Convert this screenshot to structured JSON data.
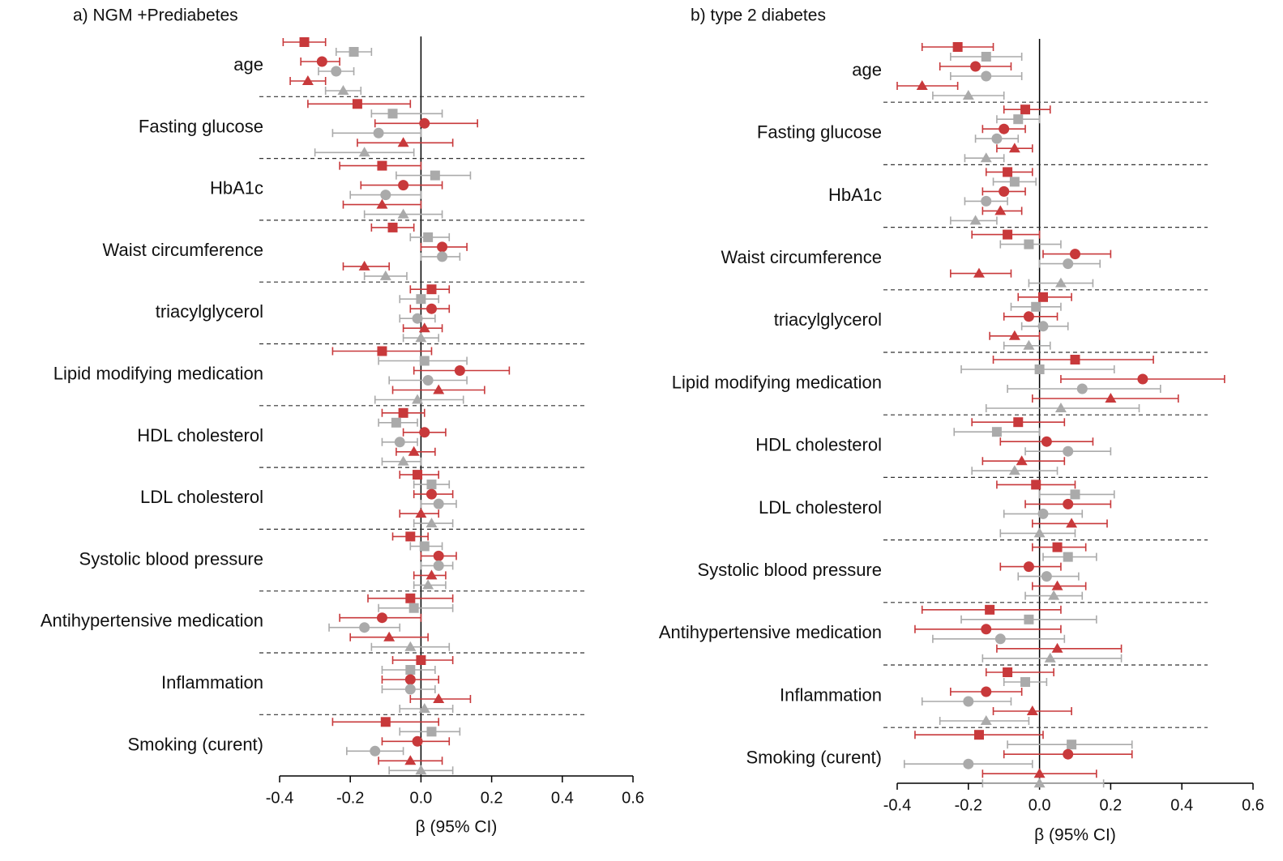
{
  "chart_data": [
    {
      "type": "forest",
      "title": "a) NGM +Prediabetes",
      "xlabel": "β (95% CI)",
      "xlim": [
        -0.4,
        0.6
      ],
      "xticks": [
        -0.4,
        -0.2,
        {
          "value": 0,
          "label": "0.0"
        },
        0.2,
        0.4,
        0.6
      ],
      "categories": [
        "age",
        "Fasting glucose",
        "HbA1c",
        "Waist circumference",
        "triacylglycerol",
        "Lipid modifying medication",
        "HDL cholesterol",
        "LDL cholesterol",
        "Systolic blood pressure",
        "Antihypertensive medication",
        "Inflammation",
        "Smoking (curent)"
      ],
      "series": [
        {
          "color": "#c8393b",
          "marker": "square",
          "values": [
            -0.33,
            -0.18,
            -0.11,
            -0.08,
            0.03,
            -0.11,
            -0.05,
            -0.01,
            -0.03,
            -0.03,
            0.0,
            -0.1
          ],
          "lower": [
            -0.39,
            -0.32,
            -0.23,
            -0.14,
            -0.03,
            -0.25,
            -0.11,
            -0.06,
            -0.08,
            -0.15,
            -0.08,
            -0.25
          ],
          "upper": [
            -0.27,
            -0.03,
            0.0,
            -0.02,
            0.08,
            0.03,
            0.01,
            0.05,
            0.02,
            0.09,
            0.09,
            0.05
          ]
        },
        {
          "color": "#aaaaaa",
          "marker": "square",
          "values": [
            -0.19,
            -0.08,
            0.04,
            0.02,
            0.0,
            0.01,
            -0.07,
            0.03,
            0.01,
            -0.02,
            -0.03,
            0.03
          ],
          "lower": [
            -0.24,
            -0.14,
            -0.07,
            -0.03,
            -0.06,
            -0.12,
            -0.12,
            -0.02,
            -0.03,
            -0.12,
            -0.11,
            -0.06
          ],
          "upper": [
            -0.14,
            0.06,
            0.14,
            0.08,
            0.05,
            0.13,
            -0.01,
            0.08,
            0.06,
            0.09,
            0.04,
            0.11
          ]
        },
        {
          "color": "#c8393b",
          "marker": "circle",
          "values": [
            -0.28,
            0.01,
            -0.05,
            0.06,
            0.03,
            0.11,
            0.01,
            0.03,
            0.05,
            -0.11,
            -0.03,
            -0.01
          ],
          "lower": [
            -0.34,
            -0.13,
            -0.17,
            0.0,
            -0.03,
            -0.02,
            -0.05,
            -0.02,
            0.0,
            -0.23,
            -0.11,
            -0.11
          ],
          "upper": [
            -0.23,
            0.16,
            0.06,
            0.13,
            0.08,
            0.25,
            0.07,
            0.09,
            0.1,
            0.0,
            0.05,
            0.08
          ]
        },
        {
          "color": "#aaaaaa",
          "marker": "circle",
          "values": [
            -0.24,
            -0.12,
            -0.1,
            0.06,
            -0.01,
            0.02,
            -0.06,
            0.05,
            0.05,
            -0.16,
            -0.03,
            -0.13
          ],
          "lower": [
            -0.29,
            -0.25,
            -0.2,
            0.0,
            -0.06,
            -0.09,
            -0.11,
            0.0,
            0.0,
            -0.26,
            -0.11,
            -0.21
          ],
          "upper": [
            -0.19,
            0.0,
            0.0,
            0.11,
            0.04,
            0.13,
            -0.01,
            0.1,
            0.09,
            -0.06,
            0.04,
            -0.05
          ]
        },
        {
          "color": "#c8393b",
          "marker": "triangle",
          "values": [
            -0.32,
            -0.05,
            -0.11,
            -0.16,
            0.01,
            0.05,
            -0.02,
            0.0,
            0.03,
            -0.09,
            0.05,
            -0.03
          ],
          "lower": [
            -0.37,
            -0.18,
            -0.22,
            -0.22,
            -0.05,
            -0.08,
            -0.07,
            -0.06,
            -0.02,
            -0.2,
            -0.03,
            -0.12
          ],
          "upper": [
            -0.27,
            0.09,
            0.0,
            -0.09,
            0.06,
            0.18,
            0.04,
            0.05,
            0.07,
            0.02,
            0.14,
            0.06
          ]
        },
        {
          "color": "#aaaaaa",
          "marker": "triangle",
          "values": [
            -0.22,
            -0.16,
            -0.05,
            -0.1,
            0.0,
            -0.01,
            -0.05,
            0.03,
            0.02,
            -0.03,
            0.01,
            0.0
          ],
          "lower": [
            -0.27,
            -0.3,
            -0.16,
            -0.16,
            -0.05,
            -0.13,
            -0.11,
            -0.02,
            -0.02,
            -0.14,
            -0.06,
            -0.09
          ],
          "upper": [
            -0.17,
            -0.02,
            0.06,
            -0.04,
            0.05,
            0.12,
            0.0,
            0.09,
            0.07,
            0.08,
            0.09,
            0.09
          ]
        }
      ]
    },
    {
      "type": "forest",
      "title": "b) type 2 diabetes",
      "xlabel": "β (95% CI)",
      "xlim": [
        -0.4,
        0.6
      ],
      "xticks": [
        -0.4,
        -0.2,
        {
          "value": 0,
          "label": "0.0"
        },
        0.2,
        0.4,
        0.6
      ],
      "categories": [
        "age",
        "Fasting glucose",
        "HbA1c",
        "Waist circumference",
        "triacylglycerol",
        "Lipid modifying medication",
        "HDL cholesterol",
        "LDL cholesterol",
        "Systolic blood pressure",
        "Antihypertensive medication",
        "Inflammation",
        "Smoking (curent)"
      ],
      "series": [
        {
          "color": "#c8393b",
          "marker": "square",
          "values": [
            -0.23,
            -0.04,
            -0.09,
            -0.09,
            0.01,
            0.1,
            -0.06,
            -0.01,
            0.05,
            -0.14,
            -0.09,
            -0.17
          ],
          "lower": [
            -0.33,
            -0.1,
            -0.15,
            -0.19,
            -0.06,
            -0.13,
            -0.19,
            -0.12,
            -0.02,
            -0.33,
            -0.15,
            -0.35
          ],
          "upper": [
            -0.13,
            0.03,
            -0.02,
            0.0,
            0.09,
            0.32,
            0.07,
            0.1,
            0.13,
            0.06,
            0.04,
            0.01
          ]
        },
        {
          "color": "#aaaaaa",
          "marker": "square",
          "values": [
            -0.15,
            -0.06,
            -0.07,
            -0.03,
            -0.01,
            0.0,
            -0.12,
            0.1,
            0.08,
            -0.03,
            -0.04,
            0.09
          ],
          "lower": [
            -0.25,
            -0.12,
            -0.13,
            -0.11,
            -0.08,
            -0.22,
            -0.24,
            0.0,
            0.01,
            -0.22,
            -0.1,
            -0.09
          ],
          "upper": [
            -0.05,
            0.0,
            -0.01,
            0.06,
            0.06,
            0.21,
            0.0,
            0.21,
            0.16,
            0.16,
            0.02,
            0.26
          ]
        },
        {
          "color": "#c8393b",
          "marker": "circle",
          "values": [
            -0.18,
            -0.1,
            -0.1,
            0.1,
            -0.03,
            0.29,
            0.02,
            0.08,
            -0.03,
            -0.15,
            -0.15,
            0.08
          ],
          "lower": [
            -0.28,
            -0.16,
            -0.16,
            0.01,
            -0.1,
            0.06,
            -0.11,
            -0.04,
            -0.11,
            -0.35,
            -0.25,
            -0.1
          ],
          "upper": [
            -0.08,
            -0.04,
            -0.04,
            0.2,
            0.05,
            0.52,
            0.15,
            0.2,
            0.06,
            0.06,
            -0.05,
            0.26
          ]
        },
        {
          "color": "#aaaaaa",
          "marker": "circle",
          "values": [
            -0.15,
            -0.12,
            -0.15,
            0.08,
            0.01,
            0.12,
            0.08,
            0.01,
            0.02,
            -0.11,
            -0.2,
            -0.2
          ],
          "lower": [
            -0.25,
            -0.18,
            -0.21,
            0.0,
            -0.05,
            -0.09,
            -0.04,
            -0.1,
            -0.06,
            -0.3,
            -0.33,
            -0.38
          ],
          "upper": [
            -0.05,
            -0.06,
            -0.09,
            0.17,
            0.08,
            0.34,
            0.2,
            0.12,
            0.11,
            0.07,
            -0.08,
            -0.02
          ]
        },
        {
          "color": "#c8393b",
          "marker": "triangle",
          "values": [
            -0.33,
            -0.07,
            -0.11,
            -0.17,
            -0.07,
            0.2,
            -0.05,
            0.09,
            0.05,
            0.05,
            -0.02,
            0.0
          ],
          "lower": [
            -0.4,
            -0.12,
            -0.16,
            -0.25,
            -0.14,
            -0.02,
            -0.16,
            -0.02,
            -0.02,
            -0.12,
            -0.13,
            -0.16
          ],
          "upper": [
            -0.23,
            -0.02,
            -0.05,
            -0.08,
            0.0,
            0.39,
            0.07,
            0.19,
            0.13,
            0.23,
            0.09,
            0.16
          ]
        },
        {
          "color": "#aaaaaa",
          "marker": "triangle",
          "values": [
            -0.2,
            -0.15,
            -0.18,
            0.06,
            -0.03,
            0.06,
            -0.07,
            0.0,
            0.04,
            0.03,
            -0.15,
            0.0
          ],
          "lower": [
            -0.3,
            -0.21,
            -0.25,
            -0.03,
            -0.1,
            -0.15,
            -0.19,
            -0.11,
            -0.04,
            -0.16,
            -0.28,
            -0.16
          ],
          "upper": [
            -0.1,
            -0.1,
            -0.12,
            0.15,
            0.03,
            0.28,
            0.05,
            0.1,
            0.12,
            0.23,
            -0.03,
            0.18
          ]
        }
      ]
    }
  ]
}
